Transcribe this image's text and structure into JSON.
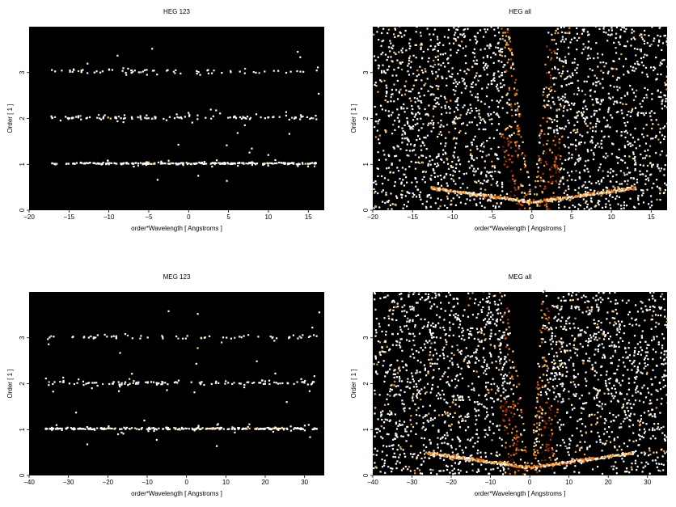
{
  "colors": {
    "background": "#000000",
    "colormap": [
      "#3a0c00",
      "#7a1e00",
      "#b33a00",
      "#e0651a",
      "#f5a23c",
      "#ffd98a",
      "#ffffff"
    ]
  },
  "chart_data": [
    {
      "type": "heatmap",
      "title": "HEG 123",
      "xlabel": "order*Wavelength [ Angstroms ]",
      "ylabel": "Order [ 1 ]",
      "xlim": [
        -20,
        17
      ],
      "ylim": [
        0,
        4
      ],
      "xticks": [
        -20,
        -15,
        -10,
        -5,
        0,
        5,
        10,
        15
      ],
      "yticks": [
        0,
        1,
        2,
        3
      ],
      "xtick_labels": [
        "−20",
        "−15",
        "−10",
        "−5",
        "0",
        "5",
        "10",
        "15"
      ],
      "ytick_labels": [
        "0",
        "1",
        "2",
        "3"
      ],
      "grid": false,
      "bands": [
        {
          "order": 1,
          "x_min": -17.5,
          "x_max": 16,
          "density": "high"
        },
        {
          "order": 2,
          "x_min": -17.5,
          "x_max": 16,
          "density": "medium"
        },
        {
          "order": 3,
          "x_min": -17.5,
          "x_max": 16,
          "density": "low"
        }
      ]
    },
    {
      "type": "heatmap",
      "title": "HEG all",
      "xlabel": "order*Wavelength [ Angstroms ]",
      "ylabel": "Order [ 1 ]",
      "xlim": [
        -20,
        17
      ],
      "ylim": [
        0,
        4
      ],
      "xticks": [
        -20,
        -15,
        -10,
        -5,
        0,
        5,
        10,
        15
      ],
      "yticks": [
        0,
        1,
        2,
        3
      ],
      "xtick_labels": [
        "−20",
        "−15",
        "−10",
        "−5",
        "0",
        "5",
        "10",
        "15"
      ],
      "ytick_labels": [
        "0",
        "1",
        "2",
        "3"
      ],
      "grid": false,
      "empty_wedge": {
        "apex_x": 0,
        "apex_y": 0,
        "top_left_x": -3,
        "top_right_x": 2
      }
    },
    {
      "type": "heatmap",
      "title": "MEG 123",
      "xlabel": "order*Wavelength [ Angstroms ]",
      "ylabel": "Order [ 1 ]",
      "xlim": [
        -40,
        35
      ],
      "ylim": [
        0,
        4
      ],
      "xticks": [
        -40,
        -30,
        -20,
        -10,
        0,
        10,
        20,
        30
      ],
      "yticks": [
        0,
        1,
        2,
        3
      ],
      "xtick_labels": [
        "−40",
        "−30",
        "−20",
        "−10",
        "0",
        "10",
        "20",
        "30"
      ],
      "ytick_labels": [
        "0",
        "1",
        "2",
        "3"
      ],
      "grid": false,
      "bands": [
        {
          "order": 1,
          "x_min": -36,
          "x_max": 33,
          "density": "high"
        },
        {
          "order": 2,
          "x_min": -36,
          "x_max": 33,
          "density": "medium"
        },
        {
          "order": 3,
          "x_min": -36,
          "x_max": 33,
          "density": "low"
        }
      ]
    },
    {
      "type": "heatmap",
      "title": "MEG all",
      "xlabel": "order*Wavelength [ Angstroms ]",
      "ylabel": "Order [ 1 ]",
      "xlim": [
        -40,
        35
      ],
      "ylim": [
        0,
        4
      ],
      "xticks": [
        -40,
        -30,
        -20,
        -10,
        0,
        10,
        20,
        30
      ],
      "yticks": [
        0,
        1,
        2,
        3
      ],
      "xtick_labels": [
        "−40",
        "−30",
        "−20",
        "−10",
        "0",
        "10",
        "20",
        "30"
      ],
      "ytick_labels": [
        "0",
        "1",
        "2",
        "3"
      ],
      "grid": false,
      "empty_wedge": {
        "apex_x": 0,
        "apex_y": 0,
        "top_left_x": -6,
        "top_right_x": 3
      }
    }
  ]
}
